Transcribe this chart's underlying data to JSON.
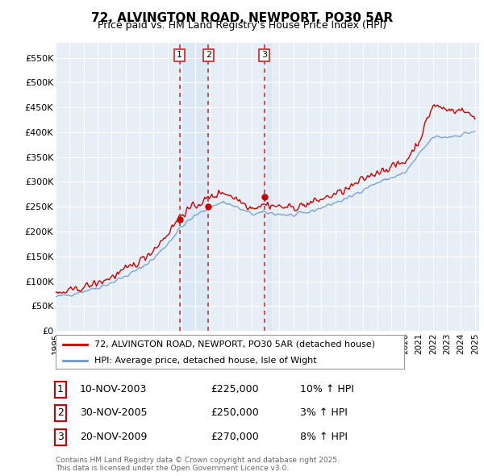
{
  "title": "72, ALVINGTON ROAD, NEWPORT, PO30 5AR",
  "subtitle": "Price paid vs. HM Land Registry's House Price Index (HPI)",
  "legend_label_red": "72, ALVINGTON ROAD, NEWPORT, PO30 5AR (detached house)",
  "legend_label_blue": "HPI: Average price, detached house, Isle of Wight",
  "footnote": "Contains HM Land Registry data © Crown copyright and database right 2025.\nThis data is licensed under the Open Government Licence v3.0.",
  "transactions": [
    {
      "num": 1,
      "date": "10-NOV-2003",
      "price": "£225,000",
      "hpi": "10% ↑ HPI"
    },
    {
      "num": 2,
      "date": "30-NOV-2005",
      "price": "£250,000",
      "hpi": "3% ↑ HPI"
    },
    {
      "num": 3,
      "date": "20-NOV-2009",
      "price": "£270,000",
      "hpi": "8% ↑ HPI"
    }
  ],
  "transaction_years": [
    2003.87,
    2005.92,
    2009.92
  ],
  "transaction_prices": [
    225000,
    250000,
    270000
  ],
  "ylim": [
    0,
    580000
  ],
  "yticks": [
    0,
    50000,
    100000,
    150000,
    200000,
    250000,
    300000,
    350000,
    400000,
    450000,
    500000,
    550000
  ],
  "background_color": "#ffffff",
  "plot_bg_color": "#e8eef5",
  "shade_color": "#dce8f5",
  "grid_color": "#ffffff",
  "red_color": "#cc0000",
  "blue_color": "#6699cc",
  "vline_color": "#cc3333",
  "marker_color": "#cc0000"
}
